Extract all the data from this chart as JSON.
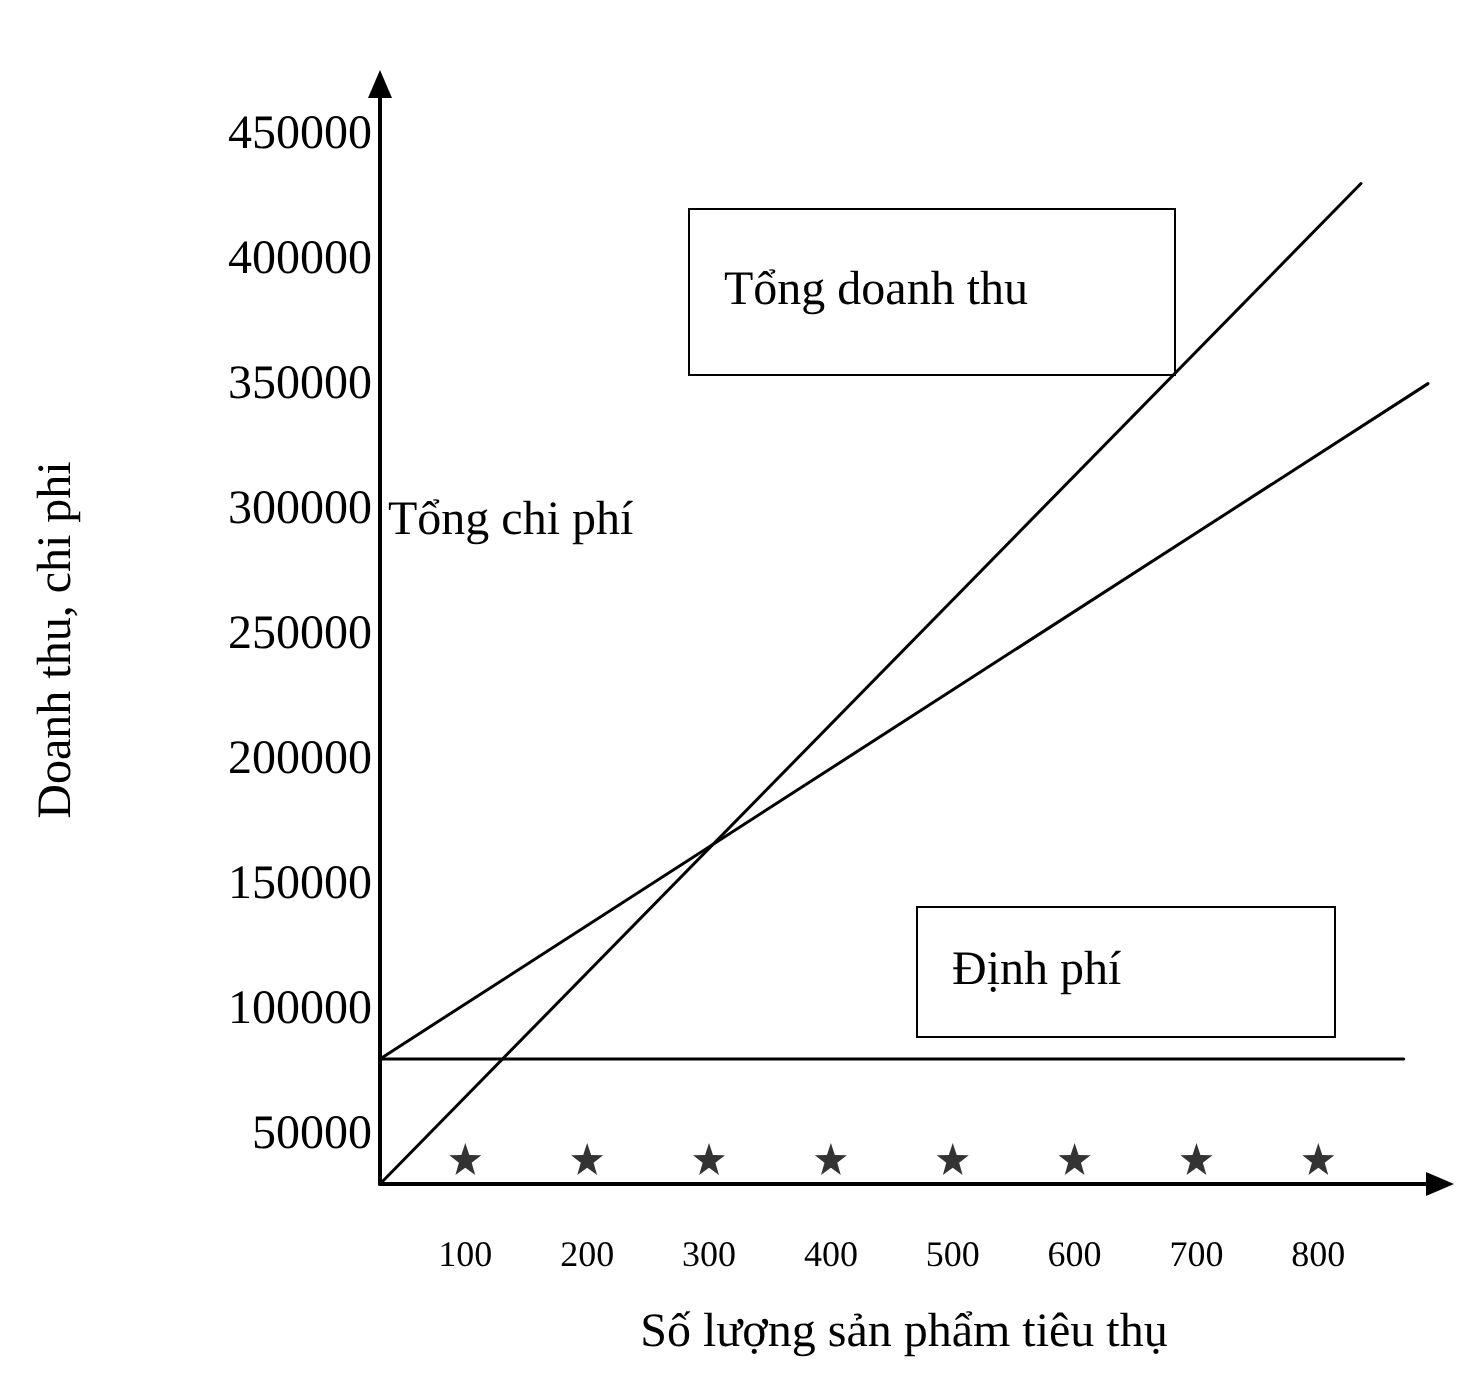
{
  "chart_data": {
    "type": "line",
    "xlabel": "Số lượng sản phẩm tiêu thụ",
    "ylabel": "Doanh thu, chi phi",
    "xlim": [
      30,
      890
    ],
    "ylim": [
      30000,
      465000
    ],
    "xticks": [
      100,
      200,
      300,
      400,
      500,
      600,
      700,
      800
    ],
    "yticks": [
      50000,
      100000,
      150000,
      200000,
      250000,
      300000,
      350000,
      400000,
      450000
    ],
    "grid": false,
    "marker": "none",
    "line_style": "solid",
    "series": [
      {
        "color": "#000000",
        "x": [
          30,
          835
        ],
        "values": [
          30000,
          430000
        ]
      },
      {
        "color": "#000000",
        "x": [
          30,
          890
        ],
        "values": [
          80000,
          350000
        ]
      },
      {
        "color": "#000000",
        "x": [
          30,
          870
        ],
        "values": [
          80000,
          80000
        ]
      },
      {
        "type": "scatter",
        "marker": "star",
        "color": "#000000",
        "x": [
          100,
          200,
          300,
          400,
          500,
          600,
          700,
          800
        ],
        "values": [
          40000,
          40000,
          40000,
          40000,
          40000,
          40000,
          40000,
          40000
        ]
      }
    ],
    "annotations": [
      "Tổng doanh thu",
      "Tổng chi phí",
      "Định phí"
    ]
  }
}
